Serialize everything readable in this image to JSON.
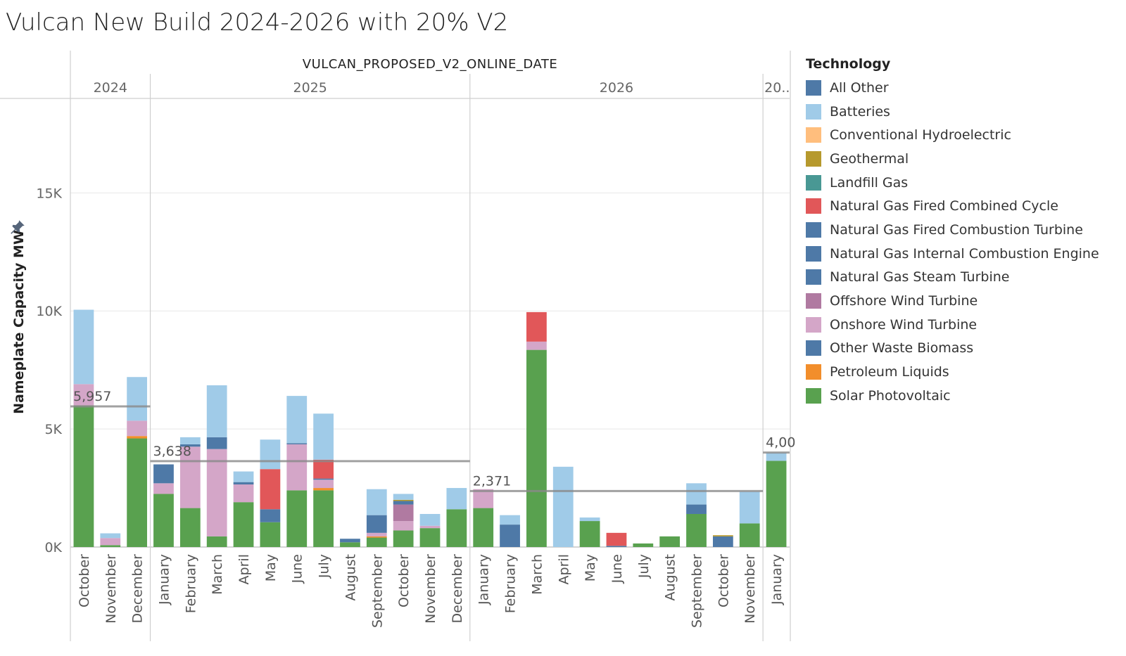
{
  "title": "Vulcan New Build 2024-2026 with 20% V2",
  "legend": {
    "title": "Technology",
    "items": [
      {
        "label": "All Other",
        "color": "#4e79a7"
      },
      {
        "label": "Batteries",
        "color": "#a0cbe8"
      },
      {
        "label": "Conventional Hydroelectric",
        "color": "#ffbe7d"
      },
      {
        "label": "Geothermal",
        "color": "#b6992d"
      },
      {
        "label": "Landfill Gas",
        "color": "#499894"
      },
      {
        "label": "Natural Gas Fired Combined Cycle",
        "color": "#e15759"
      },
      {
        "label": "Natural Gas Fired Combustion Turbine",
        "color": "#4e79a7"
      },
      {
        "label": "Natural Gas Internal Combustion Engine",
        "color": "#4e79a7"
      },
      {
        "label": "Natural Gas Steam Turbine",
        "color": "#4e79a7"
      },
      {
        "label": "Offshore Wind Turbine",
        "color": "#b07aa1"
      },
      {
        "label": "Onshore Wind Turbine",
        "color": "#d4a6c8"
      },
      {
        "label": "Other Waste Biomass",
        "color": "#4e79a7"
      },
      {
        "label": "Petroleum Liquids",
        "color": "#f28e2b"
      },
      {
        "label": "Solar Photovoltaic",
        "color": "#59a14f"
      }
    ]
  },
  "chart_data": {
    "type": "bar",
    "stacked": true,
    "title": "Vulcan New Build 2024-2026 with 20% V2",
    "column_header": "VULCAN_PROPOSED_V2_ONLINE_DATE",
    "ylabel": "Nameplate Capacity MW",
    "ylim": [
      0,
      19000
    ],
    "yticks": [
      {
        "value": 0,
        "label": "0K"
      },
      {
        "value": 5000,
        "label": "5K"
      },
      {
        "value": 10000,
        "label": "10K"
      },
      {
        "value": 15000,
        "label": "15K"
      }
    ],
    "years": [
      {
        "label": "2024",
        "months": 3,
        "average": 5957,
        "average_label": "5,957"
      },
      {
        "label": "2025",
        "months": 12,
        "average": 3638,
        "average_label": "3,638"
      },
      {
        "label": "2026",
        "months": 11,
        "average": 2371,
        "average_label": "2,371"
      },
      {
        "label": "20..",
        "months": 1,
        "average": 4000,
        "average_label": "4,00"
      }
    ],
    "categories": [
      "October",
      "November",
      "December",
      "January",
      "February",
      "March",
      "April",
      "May",
      "June",
      "July",
      "August",
      "September",
      "October",
      "November",
      "December",
      "January",
      "February",
      "March",
      "April",
      "May",
      "June",
      "July",
      "August",
      "September",
      "October",
      "November",
      "January"
    ],
    "series": [
      {
        "name": "Solar Photovoltaic",
        "color": "#59a14f",
        "values": [
          6000,
          80,
          4600,
          2250,
          1650,
          450,
          1900,
          1050,
          2400,
          2400,
          200,
          400,
          700,
          800,
          1600,
          1650,
          0,
          8350,
          0,
          1100,
          0,
          150,
          450,
          1400,
          0,
          1000,
          3650
        ]
      },
      {
        "name": "Petroleum Liquids",
        "color": "#f28e2b",
        "values": [
          0,
          0,
          100,
          0,
          0,
          0,
          0,
          0,
          0,
          100,
          0,
          50,
          0,
          0,
          0,
          0,
          0,
          0,
          0,
          0,
          0,
          0,
          0,
          0,
          0,
          0,
          0
        ]
      },
      {
        "name": "Other Waste Biomass",
        "color": "#4e79a7",
        "values": [
          0,
          0,
          0,
          0,
          0,
          0,
          0,
          0,
          0,
          0,
          0,
          0,
          0,
          0,
          0,
          0,
          0,
          0,
          0,
          0,
          0,
          0,
          0,
          0,
          0,
          0,
          0
        ]
      },
      {
        "name": "Onshore Wind Turbine",
        "color": "#d4a6c8",
        "values": [
          900,
          300,
          650,
          450,
          2600,
          3700,
          750,
          0,
          1950,
          350,
          0,
          150,
          400,
          100,
          0,
          800,
          0,
          350,
          0,
          0,
          0,
          0,
          0,
          0,
          0,
          0,
          0
        ]
      },
      {
        "name": "Offshore Wind Turbine",
        "color": "#b07aa1",
        "values": [
          0,
          0,
          0,
          0,
          0,
          0,
          0,
          0,
          0,
          0,
          0,
          0,
          700,
          0,
          0,
          0,
          0,
          0,
          0,
          0,
          0,
          0,
          0,
          0,
          0,
          0,
          0
        ]
      },
      {
        "name": "Natural Gas Steam Turbine",
        "color": "#4e79a7",
        "values": [
          0,
          0,
          0,
          0,
          0,
          0,
          0,
          0,
          0,
          0,
          0,
          0,
          0,
          0,
          0,
          0,
          0,
          0,
          0,
          0,
          0,
          0,
          0,
          0,
          0,
          0,
          0
        ]
      },
      {
        "name": "Natural Gas Internal Combustion Engine",
        "color": "#4e79a7",
        "values": [
          0,
          0,
          0,
          0,
          0,
          0,
          0,
          0,
          0,
          0,
          0,
          0,
          0,
          0,
          0,
          0,
          0,
          0,
          0,
          0,
          0,
          0,
          0,
          0,
          0,
          0,
          0
        ]
      },
      {
        "name": "Natural Gas Fired Combustion Turbine",
        "color": "#4e79a7",
        "values": [
          0,
          0,
          0,
          800,
          100,
          500,
          100,
          550,
          50,
          50,
          150,
          750,
          150,
          0,
          0,
          0,
          950,
          0,
          0,
          0,
          50,
          0,
          0,
          400,
          450,
          0,
          0
        ]
      },
      {
        "name": "Natural Gas Fired Combined Cycle",
        "color": "#e15759",
        "values": [
          0,
          0,
          0,
          0,
          0,
          0,
          0,
          1700,
          0,
          800,
          0,
          0,
          0,
          0,
          0,
          0,
          0,
          1250,
          0,
          0,
          550,
          0,
          0,
          0,
          0,
          0,
          0
        ]
      },
      {
        "name": "Landfill Gas",
        "color": "#499894",
        "values": [
          0,
          0,
          0,
          0,
          0,
          0,
          0,
          0,
          0,
          0,
          0,
          0,
          0,
          0,
          0,
          0,
          0,
          0,
          0,
          0,
          0,
          0,
          0,
          0,
          0,
          0,
          0
        ]
      },
      {
        "name": "Geothermal",
        "color": "#b6992d",
        "values": [
          0,
          0,
          0,
          0,
          0,
          0,
          0,
          0,
          0,
          0,
          0,
          0,
          50,
          0,
          0,
          0,
          0,
          0,
          0,
          0,
          0,
          0,
          0,
          0,
          50,
          0,
          0
        ]
      },
      {
        "name": "Conventional Hydroelectric",
        "color": "#ffbe7d",
        "values": [
          0,
          0,
          0,
          0,
          0,
          0,
          0,
          0,
          0,
          0,
          0,
          0,
          0,
          0,
          0,
          0,
          0,
          0,
          0,
          0,
          0,
          0,
          0,
          0,
          0,
          0,
          0
        ]
      },
      {
        "name": "Batteries",
        "color": "#a0cbe8",
        "values": [
          3150,
          200,
          1850,
          0,
          300,
          2200,
          450,
          1250,
          2000,
          1950,
          0,
          1100,
          250,
          500,
          900,
          0,
          400,
          0,
          3400,
          150,
          0,
          0,
          0,
          900,
          0,
          1350,
          350
        ]
      },
      {
        "name": "All Other",
        "color": "#4e79a7",
        "values": [
          0,
          0,
          0,
          0,
          0,
          0,
          0,
          0,
          0,
          0,
          0,
          0,
          0,
          0,
          0,
          0,
          0,
          0,
          0,
          0,
          0,
          0,
          0,
          0,
          0,
          0,
          0
        ]
      }
    ],
    "grid": true,
    "legend_position": "right"
  }
}
